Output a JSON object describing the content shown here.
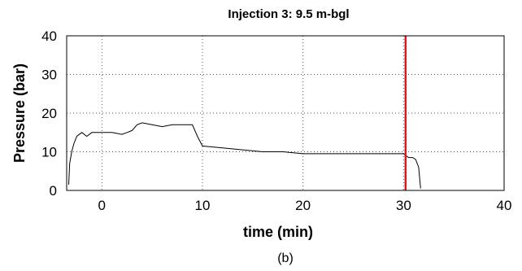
{
  "chart_data": {
    "type": "line",
    "title": "Injection 3: 9.5 m-bgl",
    "xlabel": "time (min)",
    "ylabel": "Pressure (bar)",
    "caption": "(b)",
    "xlim": [
      -3.5,
      40
    ],
    "ylim": [
      0,
      40
    ],
    "x_ticks": [
      0,
      10,
      20,
      30,
      40
    ],
    "y_ticks": [
      0,
      10,
      20,
      30,
      40
    ],
    "grid": "dotted",
    "marker_line": {
      "x": 30.2,
      "color": "#e8141b"
    },
    "line_color": "#000000",
    "series": [
      {
        "x": [
          -3.3,
          -3.2,
          -3.0,
          -2.8,
          -2.5,
          -2.0,
          -1.5,
          -1.0,
          -0.5,
          0.0,
          1.0,
          2.0,
          2.5,
          3.0,
          3.5,
          4.0,
          5.0,
          6.0,
          7.0,
          8.0,
          8.5,
          9.0,
          9.5,
          10.0,
          12.0,
          14.0,
          16.0,
          18.0,
          20.0,
          22.0,
          24.0,
          26.0,
          28.0,
          29.5,
          30.0,
          30.5,
          30.9,
          31.2,
          31.5,
          31.7
        ],
        "y": [
          1.5,
          7,
          10,
          12,
          14,
          15,
          14,
          15,
          15,
          15,
          15,
          14.5,
          15,
          15.5,
          17,
          17.5,
          17,
          16.5,
          17,
          17,
          17,
          17,
          14,
          11.5,
          11,
          10.5,
          10,
          10,
          9.5,
          9.5,
          9.5,
          9.5,
          9.5,
          9.5,
          9.5,
          8.5,
          8.5,
          8,
          6,
          0.5
        ]
      }
    ]
  }
}
